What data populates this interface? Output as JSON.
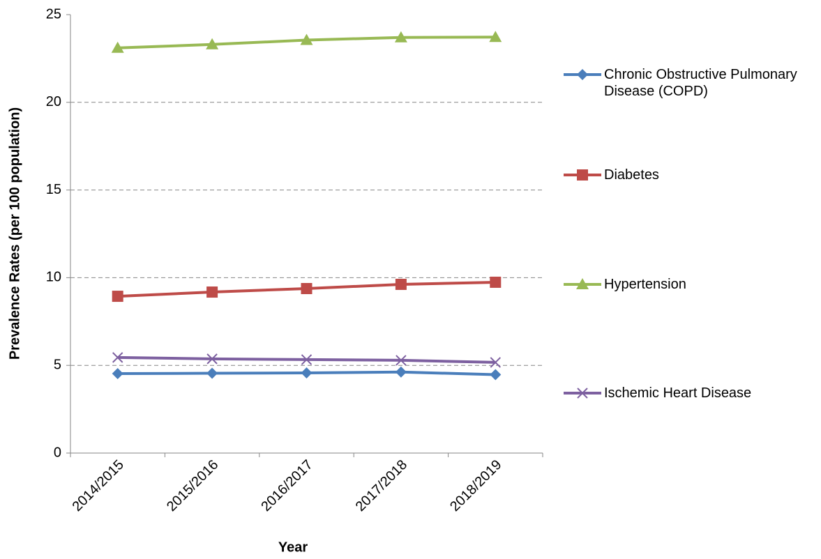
{
  "chart_data": {
    "type": "line",
    "x_label": "Year",
    "y_label": "Prevalence Rates (per 100 population)",
    "categories": [
      "2014/2015",
      "2015/2016",
      "2016/2017",
      "2017/2018",
      "2018/2019"
    ],
    "series": [
      {
        "name": "Chronic Obstructive Pulmonary Disease (COPD)",
        "color": "#4a7ebb",
        "marker": "diamond",
        "values": [
          4.53,
          4.55,
          4.57,
          4.62,
          4.47
        ]
      },
      {
        "name": "Diabetes",
        "color": "#be4b48",
        "marker": "square",
        "values": [
          8.94,
          9.18,
          9.38,
          9.62,
          9.74
        ]
      },
      {
        "name": "Hypertension",
        "color": "#98b954",
        "marker": "triangle",
        "values": [
          23.1,
          23.3,
          23.55,
          23.7,
          23.72
        ]
      },
      {
        "name": "Ischemic Heart Disease",
        "color": "#7d60a0",
        "marker": "x",
        "values": [
          5.45,
          5.37,
          5.33,
          5.29,
          5.17
        ]
      }
    ],
    "ylim": [
      0,
      25
    ],
    "yticks": [
      0,
      5,
      10,
      15,
      20,
      25
    ],
    "grid": true,
    "legend": "right"
  }
}
